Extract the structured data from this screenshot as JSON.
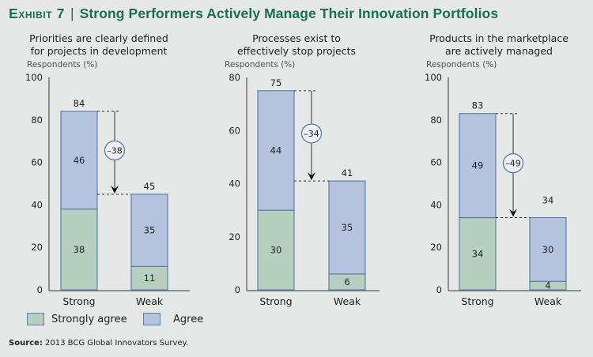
{
  "title": {
    "exhibit": "Exhibit 7",
    "separator": "|",
    "text": "Strong Performers Actively Manage Their Innovation Portfolios"
  },
  "colors": {
    "title": "#18704e",
    "strongly_agree": "#b6cfbf",
    "agree": "#b5c3de",
    "bar_border": "#5a80aa",
    "background": "#e5e8e6"
  },
  "legend": {
    "strongly_agree": "Strongly agree",
    "agree": "Agree"
  },
  "source": {
    "label": "Source:",
    "text": "2013 BCG Global Innovators Survey."
  },
  "chart_data": [
    {
      "type": "bar",
      "stacked": true,
      "title": "Priorities are clearly defined for projects in development",
      "title_lines": [
        "Priorities are clearly defined",
        "for projects in development"
      ],
      "ylabel": "Respondents (%)",
      "ylim": [
        0,
        100
      ],
      "yticks": [
        0,
        20,
        40,
        60,
        80,
        100
      ],
      "categories": [
        "Strong",
        "Weak"
      ],
      "series": [
        {
          "name": "Strongly agree",
          "values": [
            38,
            11
          ]
        },
        {
          "name": "Agree",
          "values": [
            46,
            35
          ]
        }
      ],
      "totals": [
        84,
        45
      ],
      "difference": "–38"
    },
    {
      "type": "bar",
      "stacked": true,
      "title": "Processes exist to effectively stop projects",
      "title_lines": [
        "Processes exist to",
        "effectively stop projects"
      ],
      "ylabel": "Respondents (%)",
      "ylim": [
        0,
        80
      ],
      "yticks": [
        0,
        20,
        40,
        60,
        80
      ],
      "categories": [
        "Strong",
        "Weak"
      ],
      "series": [
        {
          "name": "Strongly agree",
          "values": [
            30,
            6
          ]
        },
        {
          "name": "Agree",
          "values": [
            44,
            35
          ]
        }
      ],
      "totals": [
        75,
        41
      ],
      "difference": "–34"
    },
    {
      "type": "bar",
      "stacked": true,
      "title": "Products in the marketplace are actively managed",
      "title_lines": [
        "Products in the marketplace",
        "are actively managed"
      ],
      "ylabel": "Respondents (%)",
      "ylim": [
        0,
        100
      ],
      "yticks": [
        0,
        20,
        40,
        60,
        80,
        100
      ],
      "categories": [
        "Strong",
        "Weak"
      ],
      "series": [
        {
          "name": "Strongly agree",
          "values": [
            34,
            4
          ]
        },
        {
          "name": "Agree",
          "values": [
            49,
            30
          ]
        }
      ],
      "totals": [
        83,
        34
      ],
      "difference": "–49"
    }
  ]
}
